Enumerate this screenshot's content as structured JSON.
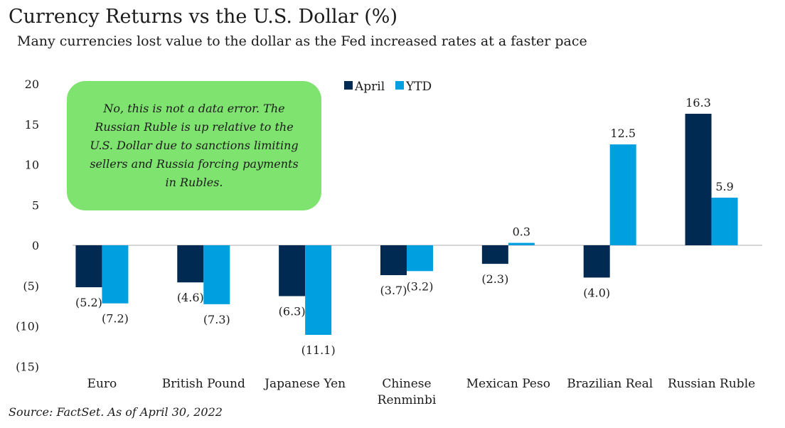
{
  "title": "Currency Returns vs the U.S. Dollar (%)",
  "subtitle": "Many currencies lost value to the dollar as the Fed increased rates at a faster pace",
  "source": "Source: FactSet. As of April 30, 2022",
  "annotation": "No, this is not a data error. The Russian Ruble is up relative to the U.S. Dollar due to sanctions limiting sellers and Russia forcing payments in Rubles.",
  "colors": {
    "april": "#002A52",
    "ytd": "#009FE0",
    "annotation_bg": "#7FE36F"
  },
  "chart_data": {
    "type": "bar",
    "categories": [
      "Euro",
      "British Pound",
      "Japanese Yen",
      "Chinese Renminbi",
      "Mexican Peso",
      "Brazilian Real",
      "Russian Ruble"
    ],
    "series": [
      {
        "name": "April",
        "values": [
          -5.2,
          -4.6,
          -6.3,
          -3.7,
          -2.3,
          -4.0,
          16.3
        ],
        "labels": [
          "(5.2)",
          "(4.6)",
          "(6.3)",
          "(3.7)",
          "(2.3)",
          "(4.0)",
          "16.3"
        ]
      },
      {
        "name": "YTD",
        "values": [
          -7.2,
          -7.3,
          -11.1,
          -3.2,
          0.3,
          12.5,
          5.9
        ],
        "labels": [
          "(7.2)",
          "(7.3)",
          "(11.1)",
          "(3.2)",
          "0.3",
          "12.5",
          "5.9"
        ]
      }
    ],
    "yticks": [
      20,
      15,
      10,
      5,
      0,
      -5,
      -10,
      -15
    ],
    "ytick_labels": [
      "20",
      "15",
      "10",
      "5",
      "0",
      "(5)",
      "(10)",
      "(15)"
    ],
    "ylim": [
      -15,
      20
    ],
    "xlabel": "",
    "ylabel": "",
    "legend_position": "top-center",
    "grid": false
  }
}
